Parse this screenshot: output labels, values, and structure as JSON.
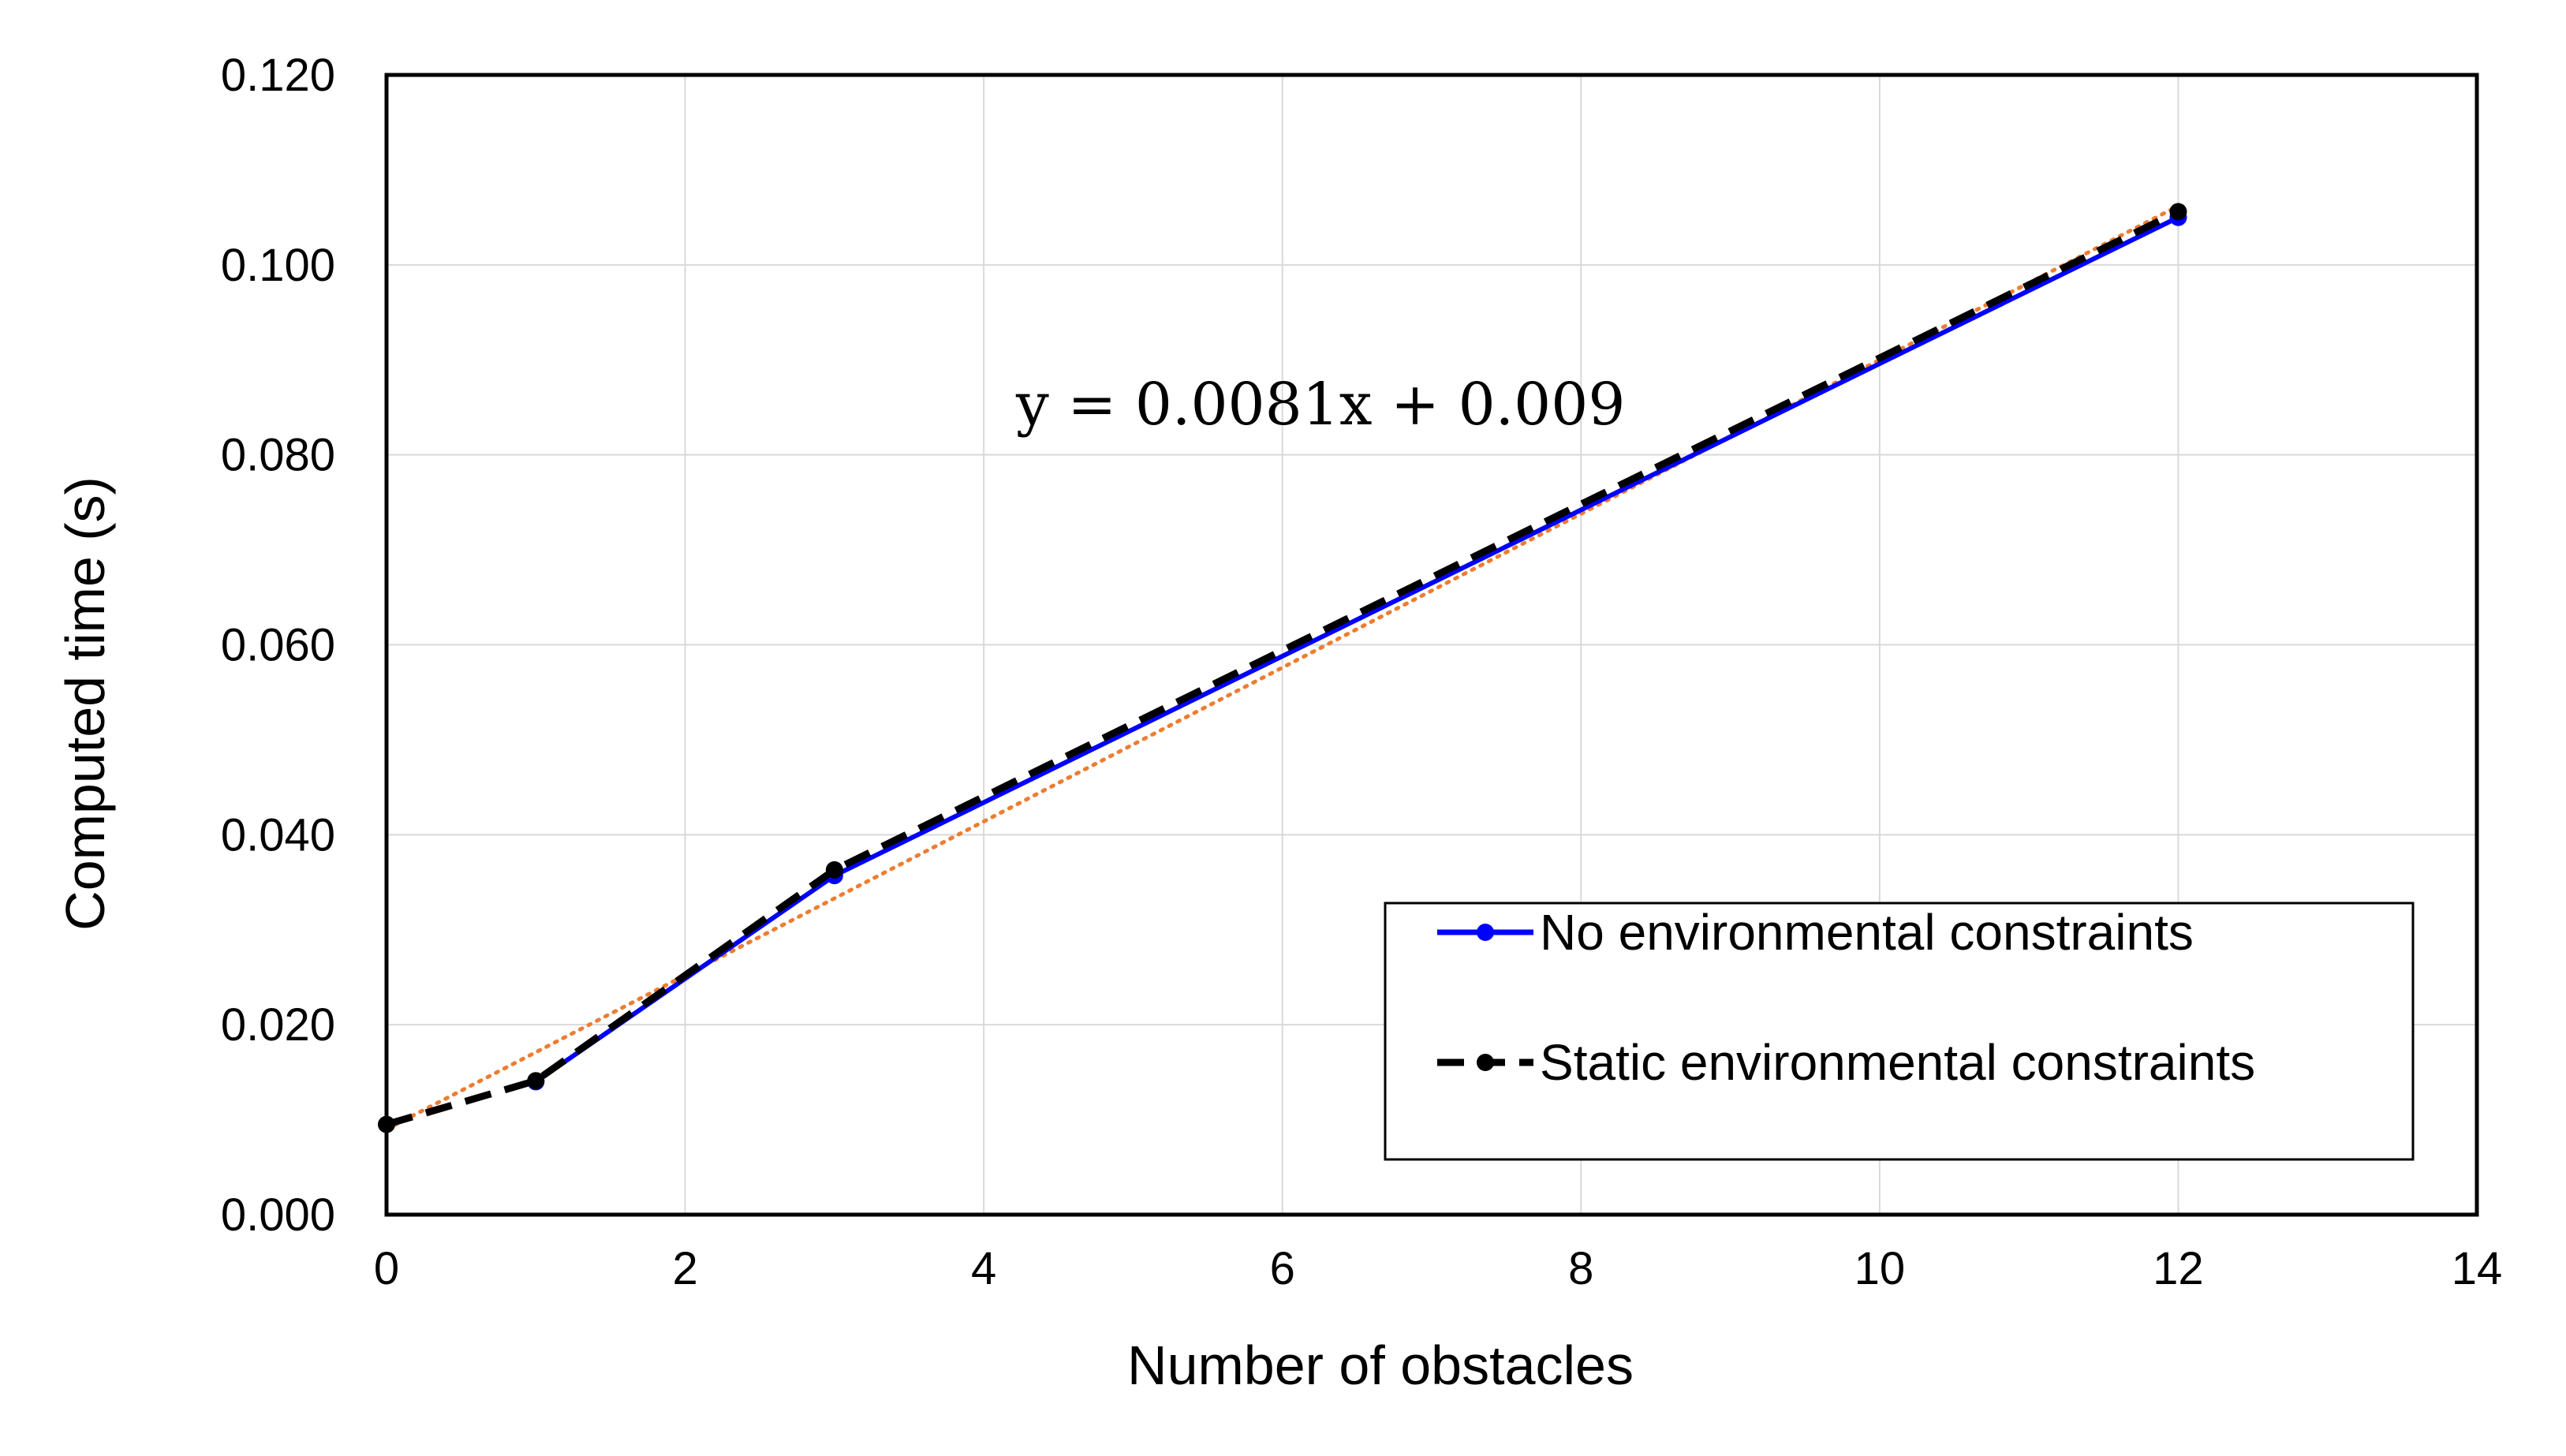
{
  "chart_data": {
    "type": "line",
    "xlabel": "Number of obstacles",
    "ylabel": "Computed time (s)",
    "xlim": [
      0,
      14
    ],
    "ylim": [
      0,
      0.12
    ],
    "x_ticks": [
      0,
      2,
      4,
      6,
      8,
      10,
      12,
      14
    ],
    "y_ticks": [
      0.0,
      0.02,
      0.04,
      0.06,
      0.08,
      0.1,
      0.12
    ],
    "x_tick_labels": [
      "0",
      "2",
      "4",
      "6",
      "8",
      "10",
      "12",
      "14"
    ],
    "y_tick_labels": [
      "0.000",
      "0.020",
      "0.040",
      "0.060",
      "0.080",
      "0.100",
      "0.120"
    ],
    "grid": true,
    "legend_position": "bottom-right",
    "series": [
      {
        "name": "No environmental constraints",
        "color": "#0000ff",
        "style": "solid",
        "marker": "circle",
        "x": [
          1,
          3,
          12
        ],
        "y": [
          0.014,
          0.0357,
          0.105
        ]
      },
      {
        "name": "Static environmental constraints",
        "color": "#000000",
        "style": "dashed",
        "marker": "circle",
        "x": [
          0,
          1,
          3,
          12
        ],
        "y": [
          0.0095,
          0.0141,
          0.0363,
          0.1056
        ]
      }
    ],
    "trendline": {
      "equation": "y = 0.0081x + 0.009",
      "color": "#ed7d31",
      "style": "dotted",
      "slope": 0.0081,
      "intercept": 0.009,
      "x_range": [
        0,
        12
      ]
    }
  }
}
